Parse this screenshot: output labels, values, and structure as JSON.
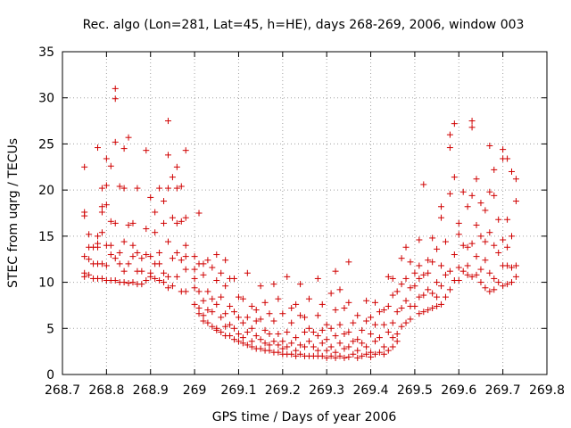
{
  "chart_data": {
    "type": "scatter",
    "title": "Rec. algo (Lon=281, Lat=45, h=HE), days 268-269, 2006, window 003",
    "xlabel": "GPS time / Days of year 2006",
    "ylabel": "STEC from uqrg / TECUs",
    "xlim": [
      268.7,
      269.8
    ],
    "ylim": [
      0,
      35
    ],
    "xticks": [
      "268.7",
      "268.8",
      "268.9",
      "269",
      "269.1",
      "269.2",
      "269.3",
      "269.4",
      "269.5",
      "269.6",
      "269.7",
      "269.8"
    ],
    "yticks": [
      "0",
      "5",
      "10",
      "15",
      "20",
      "25",
      "30",
      "35"
    ],
    "grid": true,
    "marker": "+",
    "color": "#d00000",
    "points": [
      [
        268.75,
        22.5
      ],
      [
        268.75,
        17.6
      ],
      [
        268.75,
        17.2
      ],
      [
        268.75,
        12.8
      ],
      [
        268.75,
        11.0
      ],
      [
        268.75,
        10.6
      ],
      [
        268.76,
        15.2
      ],
      [
        268.76,
        13.8
      ],
      [
        268.76,
        12.5
      ],
      [
        268.76,
        10.8
      ],
      [
        268.77,
        13.8
      ],
      [
        268.77,
        12.0
      ],
      [
        268.77,
        10.4
      ],
      [
        268.78,
        24.6
      ],
      [
        268.78,
        15.0
      ],
      [
        268.78,
        14.2
      ],
      [
        268.78,
        13.8
      ],
      [
        268.78,
        12.0
      ],
      [
        268.78,
        10.4
      ],
      [
        268.79,
        20.2
      ],
      [
        268.79,
        18.2
      ],
      [
        268.79,
        17.6
      ],
      [
        268.79,
        15.4
      ],
      [
        268.79,
        12.0
      ],
      [
        268.79,
        10.4
      ],
      [
        268.8,
        23.4
      ],
      [
        268.8,
        20.5
      ],
      [
        268.8,
        18.4
      ],
      [
        268.8,
        14.0
      ],
      [
        268.8,
        11.8
      ],
      [
        268.8,
        10.2
      ],
      [
        268.81,
        22.6
      ],
      [
        268.81,
        16.6
      ],
      [
        268.81,
        14.0
      ],
      [
        268.81,
        13.0
      ],
      [
        268.81,
        10.2
      ],
      [
        268.82,
        31.0
      ],
      [
        268.82,
        29.9
      ],
      [
        268.82,
        25.2
      ],
      [
        268.82,
        16.4
      ],
      [
        268.82,
        12.6
      ],
      [
        268.82,
        10.2
      ],
      [
        268.83,
        20.4
      ],
      [
        268.83,
        13.2
      ],
      [
        268.83,
        12.0
      ],
      [
        268.83,
        10.0
      ],
      [
        268.84,
        24.5
      ],
      [
        268.84,
        20.2
      ],
      [
        268.84,
        14.4
      ],
      [
        268.84,
        11.2
      ],
      [
        268.84,
        10.0
      ],
      [
        268.85,
        25.7
      ],
      [
        268.85,
        16.2
      ],
      [
        268.85,
        12.0
      ],
      [
        268.85,
        9.9
      ],
      [
        268.86,
        16.4
      ],
      [
        268.86,
        14.0
      ],
      [
        268.86,
        12.8
      ],
      [
        268.86,
        10.0
      ],
      [
        268.87,
        20.2
      ],
      [
        268.87,
        13.2
      ],
      [
        268.87,
        11.2
      ],
      [
        268.87,
        9.8
      ],
      [
        268.88,
        12.6
      ],
      [
        268.88,
        11.2
      ],
      [
        268.88,
        9.8
      ],
      [
        268.89,
        24.3
      ],
      [
        268.89,
        15.8
      ],
      [
        268.89,
        13.0
      ],
      [
        268.89,
        10.2
      ],
      [
        268.9,
        19.2
      ],
      [
        268.9,
        12.8
      ],
      [
        268.9,
        11.0
      ],
      [
        268.9,
        10.6
      ],
      [
        268.91,
        17.6
      ],
      [
        268.91,
        15.4
      ],
      [
        268.91,
        12.0
      ],
      [
        268.91,
        10.4
      ],
      [
        268.92,
        20.2
      ],
      [
        268.92,
        13.2
      ],
      [
        268.92,
        12.0
      ],
      [
        268.92,
        10.2
      ],
      [
        268.93,
        18.8
      ],
      [
        268.93,
        16.4
      ],
      [
        268.93,
        11.0
      ],
      [
        268.93,
        10.0
      ],
      [
        268.94,
        27.5
      ],
      [
        268.94,
        23.8
      ],
      [
        268.94,
        20.2
      ],
      [
        268.94,
        14.4
      ],
      [
        268.94,
        10.6
      ],
      [
        268.94,
        9.4
      ],
      [
        268.95,
        21.4
      ],
      [
        268.95,
        17.0
      ],
      [
        268.95,
        12.6
      ],
      [
        268.95,
        9.6
      ],
      [
        268.96,
        22.5
      ],
      [
        268.96,
        20.2
      ],
      [
        268.96,
        16.4
      ],
      [
        268.96,
        13.2
      ],
      [
        268.96,
        10.6
      ],
      [
        268.97,
        20.4
      ],
      [
        268.97,
        16.6
      ],
      [
        268.97,
        12.4
      ],
      [
        268.97,
        9.0
      ],
      [
        268.98,
        24.3
      ],
      [
        268.98,
        17.0
      ],
      [
        268.98,
        14.0
      ],
      [
        268.98,
        12.8
      ],
      [
        268.98,
        11.4
      ],
      [
        268.98,
        9.0
      ],
      [
        269.0,
        12.8
      ],
      [
        269.0,
        11.4
      ],
      [
        269.0,
        10.4
      ],
      [
        269.0,
        9.4
      ],
      [
        269.0,
        7.6
      ],
      [
        269.01,
        17.5
      ],
      [
        269.01,
        12.0
      ],
      [
        269.01,
        9.0
      ],
      [
        269.01,
        7.2
      ],
      [
        269.01,
        6.6
      ],
      [
        269.02,
        12.0
      ],
      [
        269.02,
        10.8
      ],
      [
        269.02,
        8.0
      ],
      [
        269.02,
        6.4
      ],
      [
        269.02,
        5.8
      ],
      [
        269.03,
        12.4
      ],
      [
        269.03,
        9.0
      ],
      [
        269.03,
        7.0
      ],
      [
        269.03,
        5.6
      ],
      [
        269.04,
        11.6
      ],
      [
        269.04,
        8.2
      ],
      [
        269.04,
        6.8
      ],
      [
        269.04,
        5.2
      ],
      [
        269.05,
        13.0
      ],
      [
        269.05,
        10.2
      ],
      [
        269.05,
        7.6
      ],
      [
        269.05,
        5.0
      ],
      [
        269.05,
        4.8
      ],
      [
        269.06,
        11.0
      ],
      [
        269.06,
        8.4
      ],
      [
        269.06,
        6.2
      ],
      [
        269.06,
        4.6
      ],
      [
        269.07,
        12.4
      ],
      [
        269.07,
        9.6
      ],
      [
        269.07,
        6.6
      ],
      [
        269.07,
        5.2
      ],
      [
        269.07,
        4.2
      ],
      [
        269.08,
        10.4
      ],
      [
        269.08,
        7.4
      ],
      [
        269.08,
        5.4
      ],
      [
        269.08,
        4.2
      ],
      [
        269.09,
        10.4
      ],
      [
        269.09,
        6.8
      ],
      [
        269.09,
        5.0
      ],
      [
        269.09,
        3.8
      ],
      [
        269.1,
        8.4
      ],
      [
        269.1,
        6.2
      ],
      [
        269.1,
        4.4
      ],
      [
        269.1,
        3.6
      ],
      [
        269.11,
        8.2
      ],
      [
        269.11,
        5.6
      ],
      [
        269.11,
        4.0
      ],
      [
        269.11,
        3.4
      ],
      [
        269.12,
        11.0
      ],
      [
        269.12,
        6.2
      ],
      [
        269.12,
        4.6
      ],
      [
        269.12,
        3.2
      ],
      [
        269.13,
        7.4
      ],
      [
        269.13,
        5.0
      ],
      [
        269.13,
        3.6
      ],
      [
        269.13,
        3.0
      ],
      [
        269.14,
        7.0
      ],
      [
        269.14,
        5.8
      ],
      [
        269.14,
        4.2
      ],
      [
        269.14,
        2.8
      ],
      [
        269.15,
        9.6
      ],
      [
        269.15,
        6.0
      ],
      [
        269.15,
        3.8
      ],
      [
        269.15,
        2.8
      ],
      [
        269.16,
        7.8
      ],
      [
        269.16,
        4.8
      ],
      [
        269.16,
        3.4
      ],
      [
        269.16,
        2.6
      ],
      [
        269.17,
        6.6
      ],
      [
        269.17,
        4.4
      ],
      [
        269.17,
        3.2
      ],
      [
        269.17,
        2.6
      ],
      [
        269.18,
        9.8
      ],
      [
        269.18,
        5.8
      ],
      [
        269.18,
        3.6
      ],
      [
        269.18,
        2.4
      ],
      [
        269.19,
        8.2
      ],
      [
        269.19,
        4.4
      ],
      [
        269.19,
        3.2
      ],
      [
        269.19,
        2.4
      ],
      [
        269.2,
        6.6
      ],
      [
        269.2,
        3.6
      ],
      [
        269.2,
        2.8
      ],
      [
        269.2,
        2.2
      ],
      [
        269.21,
        10.6
      ],
      [
        269.21,
        4.6
      ],
      [
        269.21,
        3.0
      ],
      [
        269.21,
        2.2
      ],
      [
        269.22,
        7.2
      ],
      [
        269.22,
        5.6
      ],
      [
        269.22,
        3.4
      ],
      [
        269.22,
        2.2
      ],
      [
        269.23,
        7.6
      ],
      [
        269.23,
        4.0
      ],
      [
        269.23,
        2.6
      ],
      [
        269.23,
        2.0
      ],
      [
        269.24,
        9.8
      ],
      [
        269.24,
        6.4
      ],
      [
        269.24,
        3.2
      ],
      [
        269.24,
        2.2
      ],
      [
        269.25,
        6.2
      ],
      [
        269.25,
        4.6
      ],
      [
        269.25,
        3.0
      ],
      [
        269.25,
        2.0
      ],
      [
        269.26,
        8.2
      ],
      [
        269.26,
        5.0
      ],
      [
        269.26,
        3.6
      ],
      [
        269.26,
        2.0
      ],
      [
        269.27,
        4.6
      ],
      [
        269.27,
        3.0
      ],
      [
        269.27,
        2.0
      ],
      [
        269.28,
        10.4
      ],
      [
        269.28,
        6.4
      ],
      [
        269.28,
        4.2
      ],
      [
        269.28,
        2.6
      ],
      [
        269.28,
        2.0
      ],
      [
        269.29,
        7.6
      ],
      [
        269.29,
        4.8
      ],
      [
        269.29,
        3.4
      ],
      [
        269.29,
        2.0
      ],
      [
        269.3,
        5.4
      ],
      [
        269.3,
        3.8
      ],
      [
        269.3,
        2.6
      ],
      [
        269.3,
        1.8
      ],
      [
        269.31,
        8.8
      ],
      [
        269.31,
        5.0
      ],
      [
        269.31,
        3.0
      ],
      [
        269.31,
        2.0
      ],
      [
        269.32,
        11.2
      ],
      [
        269.32,
        7.0
      ],
      [
        269.32,
        4.2
      ],
      [
        269.32,
        2.4
      ],
      [
        269.32,
        1.8
      ],
      [
        269.33,
        9.2
      ],
      [
        269.33,
        5.4
      ],
      [
        269.33,
        3.4
      ],
      [
        269.33,
        2.0
      ],
      [
        269.34,
        7.2
      ],
      [
        269.34,
        4.4
      ],
      [
        269.34,
        2.8
      ],
      [
        269.34,
        1.8
      ],
      [
        269.35,
        12.2
      ],
      [
        269.35,
        7.8
      ],
      [
        269.35,
        4.6
      ],
      [
        269.35,
        3.0
      ],
      [
        269.35,
        1.9
      ],
      [
        269.36,
        5.6
      ],
      [
        269.36,
        3.6
      ],
      [
        269.36,
        2.2
      ],
      [
        269.37,
        6.4
      ],
      [
        269.37,
        3.8
      ],
      [
        269.37,
        2.6
      ],
      [
        269.37,
        1.8
      ],
      [
        269.38,
        4.8
      ],
      [
        269.38,
        3.4
      ],
      [
        269.38,
        2.0
      ],
      [
        269.39,
        8.0
      ],
      [
        269.39,
        5.8
      ],
      [
        269.39,
        3.0
      ],
      [
        269.39,
        2.2
      ],
      [
        269.4,
        6.2
      ],
      [
        269.4,
        4.4
      ],
      [
        269.4,
        2.4
      ],
      [
        269.4,
        1.9
      ],
      [
        269.41,
        7.8
      ],
      [
        269.41,
        5.4
      ],
      [
        269.41,
        3.6
      ],
      [
        269.41,
        2.2
      ],
      [
        269.42,
        6.8
      ],
      [
        269.42,
        4.0
      ],
      [
        269.42,
        2.4
      ],
      [
        269.43,
        7.0
      ],
      [
        269.43,
        5.4
      ],
      [
        269.43,
        3.0
      ],
      [
        269.43,
        2.2
      ],
      [
        269.44,
        10.6
      ],
      [
        269.44,
        7.4
      ],
      [
        269.44,
        4.6
      ],
      [
        269.44,
        2.6
      ],
      [
        269.45,
        10.4
      ],
      [
        269.45,
        8.6
      ],
      [
        269.45,
        5.6
      ],
      [
        269.45,
        4.0
      ],
      [
        269.45,
        3.0
      ],
      [
        269.46,
        9.0
      ],
      [
        269.46,
        6.8
      ],
      [
        269.46,
        4.4
      ],
      [
        269.46,
        3.6
      ],
      [
        269.47,
        12.6
      ],
      [
        269.47,
        9.8
      ],
      [
        269.47,
        7.2
      ],
      [
        269.47,
        5.2
      ],
      [
        269.48,
        13.8
      ],
      [
        269.48,
        10.4
      ],
      [
        269.48,
        8.0
      ],
      [
        269.48,
        5.6
      ],
      [
        269.49,
        12.2
      ],
      [
        269.49,
        9.4
      ],
      [
        269.49,
        7.4
      ],
      [
        269.49,
        6.0
      ],
      [
        269.5,
        11.0
      ],
      [
        269.5,
        9.6
      ],
      [
        269.5,
        7.4
      ],
      [
        269.51,
        14.6
      ],
      [
        269.51,
        11.8
      ],
      [
        269.51,
        10.4
      ],
      [
        269.51,
        8.4
      ],
      [
        269.51,
        6.6
      ],
      [
        269.52,
        20.6
      ],
      [
        269.52,
        10.8
      ],
      [
        269.52,
        8.6
      ],
      [
        269.52,
        6.8
      ],
      [
        269.53,
        12.4
      ],
      [
        269.53,
        11.0
      ],
      [
        269.53,
        9.2
      ],
      [
        269.53,
        7.0
      ],
      [
        269.54,
        14.8
      ],
      [
        269.54,
        12.2
      ],
      [
        269.54,
        8.8
      ],
      [
        269.54,
        7.2
      ],
      [
        269.55,
        13.6
      ],
      [
        269.55,
        10.0
      ],
      [
        269.55,
        8.4
      ],
      [
        269.55,
        7.4
      ],
      [
        269.56,
        18.2
      ],
      [
        269.56,
        17.0
      ],
      [
        269.56,
        11.8
      ],
      [
        269.56,
        9.6
      ],
      [
        269.56,
        7.6
      ],
      [
        269.57,
        14.4
      ],
      [
        269.57,
        10.8
      ],
      [
        269.57,
        8.4
      ],
      [
        269.58,
        26.0
      ],
      [
        269.58,
        24.6
      ],
      [
        269.58,
        19.6
      ],
      [
        269.58,
        11.2
      ],
      [
        269.58,
        9.2
      ],
      [
        269.59,
        27.2
      ],
      [
        269.59,
        21.4
      ],
      [
        269.59,
        13.0
      ],
      [
        269.59,
        10.2
      ],
      [
        269.6,
        16.4
      ],
      [
        269.6,
        15.2
      ],
      [
        269.6,
        11.6
      ],
      [
        269.6,
        10.2
      ],
      [
        269.61,
        19.8
      ],
      [
        269.61,
        14.0
      ],
      [
        269.61,
        11.2
      ],
      [
        269.62,
        18.2
      ],
      [
        269.62,
        13.8
      ],
      [
        269.62,
        11.8
      ],
      [
        269.62,
        10.8
      ],
      [
        269.63,
        27.5
      ],
      [
        269.63,
        26.8
      ],
      [
        269.63,
        19.4
      ],
      [
        269.63,
        14.2
      ],
      [
        269.63,
        10.6
      ],
      [
        269.64,
        21.2
      ],
      [
        269.64,
        16.2
      ],
      [
        269.64,
        12.8
      ],
      [
        269.64,
        10.8
      ],
      [
        269.65,
        18.6
      ],
      [
        269.65,
        15.0
      ],
      [
        269.65,
        11.4
      ],
      [
        269.65,
        10.0
      ],
      [
        269.66,
        17.8
      ],
      [
        269.66,
        14.4
      ],
      [
        269.66,
        12.4
      ],
      [
        269.66,
        9.4
      ],
      [
        269.67,
        24.8
      ],
      [
        269.67,
        19.8
      ],
      [
        269.67,
        15.4
      ],
      [
        269.67,
        11.0
      ],
      [
        269.67,
        9.0
      ],
      [
        269.68,
        22.2
      ],
      [
        269.68,
        19.4
      ],
      [
        269.68,
        14.0
      ],
      [
        269.68,
        10.4
      ],
      [
        269.68,
        9.2
      ],
      [
        269.69,
        16.8
      ],
      [
        269.69,
        13.2
      ],
      [
        269.69,
        10.0
      ],
      [
        269.7,
        24.4
      ],
      [
        269.7,
        23.4
      ],
      [
        269.7,
        14.6
      ],
      [
        269.7,
        11.8
      ],
      [
        269.7,
        9.6
      ],
      [
        269.71,
        23.4
      ],
      [
        269.71,
        16.8
      ],
      [
        269.71,
        13.8
      ],
      [
        269.71,
        11.8
      ],
      [
        269.71,
        9.8
      ],
      [
        269.72,
        22.0
      ],
      [
        269.72,
        15.0
      ],
      [
        269.72,
        11.6
      ],
      [
        269.72,
        10.0
      ],
      [
        269.73,
        21.2
      ],
      [
        269.73,
        18.8
      ],
      [
        269.73,
        11.8
      ],
      [
        269.73,
        10.6
      ]
    ]
  }
}
